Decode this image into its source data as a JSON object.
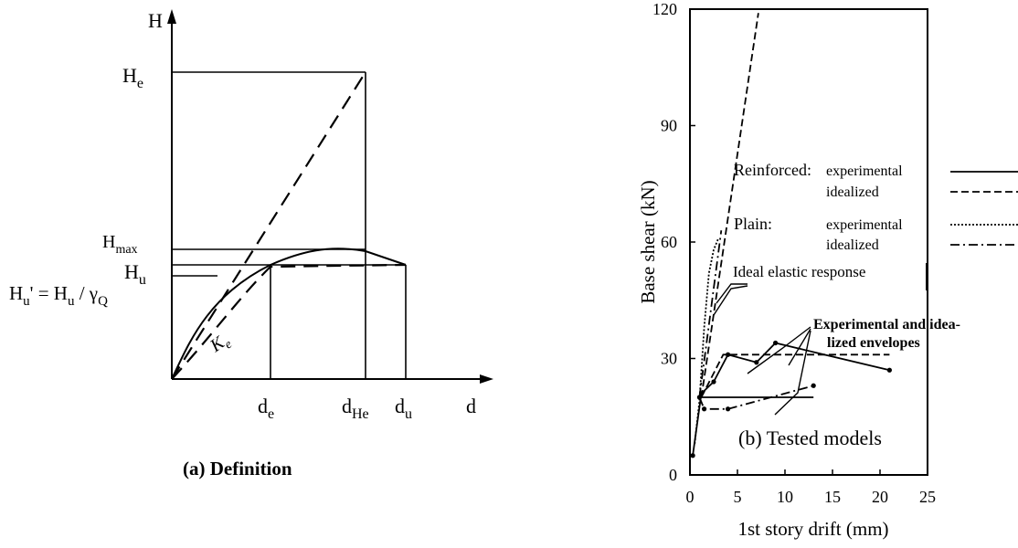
{
  "panel_a": {
    "caption": "(a) Definition",
    "labels": {
      "y_axis": "H",
      "x_axis": "d",
      "he": "H",
      "he_sub": "e",
      "hmax": "H",
      "hmax_sub": "max",
      "hu": "H",
      "hu_sub": "u",
      "hu_prime": "H",
      "hu_prime_sub": "u",
      "hu_prime_rest": "' = H",
      "hu_prime_rest_sub": "u",
      "hu_prime_div": " / γ",
      "hu_prime_div_sub": "Q",
      "ke": "K",
      "ke_sub": "e",
      "de": "d",
      "de_sub": "e",
      "dhe": "d",
      "dhe_sub": "He",
      "du": "d",
      "du_sub": "u"
    }
  },
  "panel_b": {
    "caption": "(b) Tested models",
    "annotations": {
      "ideal_elastic": "Ideal elastic response",
      "envelopes_line1": "Experimental and idea-",
      "envelopes_line2": "lized envelopes"
    },
    "legend": {
      "reinforced": "Reinforced:",
      "plain": "Plain:",
      "experimental": "experimental",
      "idealized": "idealized"
    }
  },
  "chart_data": [
    {
      "type": "line",
      "xlabel": "d",
      "ylabel": "H",
      "series": []
    },
    {
      "type": "line",
      "xlabel": "1st story drift (mm)",
      "ylabel": "Base shear (kN)",
      "xlim": [
        0,
        25
      ],
      "ylim": [
        0,
        120
      ],
      "x_ticks": [
        "0",
        "5",
        "10",
        "15",
        "20",
        "25"
      ],
      "y_ticks": [
        "0",
        "30",
        "60",
        "90",
        "120"
      ],
      "series": [
        {
          "name": "Reinforced: experimental",
          "style": "solid",
          "x": [
            0.3,
            1.2,
            2.5,
            4.0,
            7.0,
            9.0,
            21.0
          ],
          "y": [
            5,
            21,
            24,
            31,
            29,
            34,
            27
          ]
        },
        {
          "name": "Reinforced: idealized",
          "style": "dashed",
          "x": [
            1.2,
            3.5,
            21.0
          ],
          "y": [
            20,
            31,
            31
          ]
        },
        {
          "name": "Plain: experimental",
          "style": "dotted",
          "x": [
            0.5,
            1.0,
            1.5,
            2.0,
            2.5,
            3.0
          ],
          "y": [
            8,
            19,
            38,
            52,
            58,
            61
          ]
        },
        {
          "name": "Plain: idealized",
          "style": "dashdot",
          "x": [
            1.0,
            1.5,
            4.0,
            13.0
          ],
          "y": [
            20,
            17,
            17,
            23
          ]
        },
        {
          "name": "Reinforced elastic",
          "style": "dashed",
          "x": [
            1.2,
            7.2
          ],
          "y": [
            20,
            119
          ]
        },
        {
          "name": "Plain elastic",
          "style": "dashdot",
          "x": [
            1.0,
            3.3
          ],
          "y": [
            20,
            63
          ]
        },
        {
          "name": "Reinforced idealized bilinear",
          "style": "solid",
          "x": [
            1.0,
            13.0
          ],
          "y": [
            20,
            20
          ]
        }
      ]
    }
  ]
}
